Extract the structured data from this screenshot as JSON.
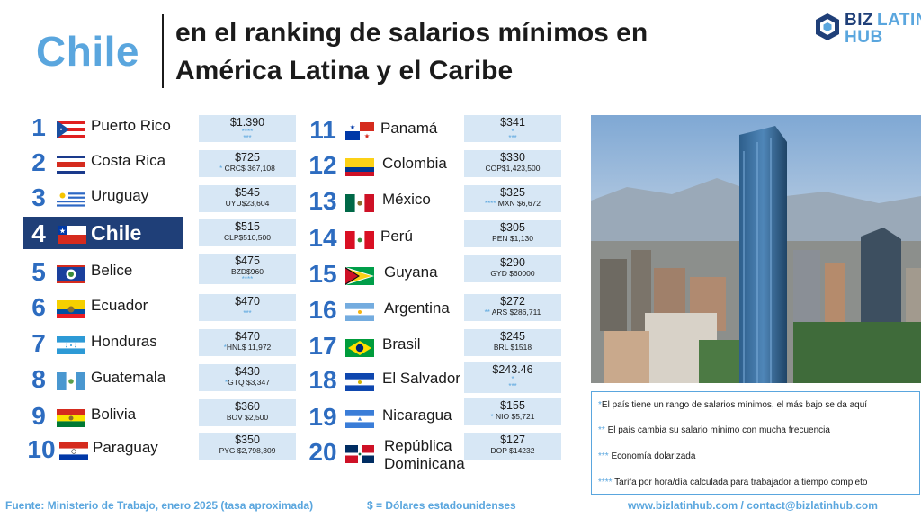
{
  "header": {
    "country": "Chile",
    "title_line1": "en el ranking de salarios mínimos en",
    "title_line2": "América Latina y el Caribe"
  },
  "logo": {
    "biz": "BIZ",
    "latin": "LATIN",
    "hub": "HUB"
  },
  "ranking": [
    {
      "rank": "1",
      "country": "Puerto Rico",
      "usd": "$1.390",
      "local": "",
      "stars_line1": "****",
      "stars_line2": "***"
    },
    {
      "rank": "2",
      "country": "Costa Rica",
      "usd": "$725",
      "star_prefix": "*",
      "local": "CRC$ 367,108"
    },
    {
      "rank": "3",
      "country": "Uruguay",
      "usd": "$545",
      "local": "UYU$23,604"
    },
    {
      "rank": "4",
      "country": "Chile",
      "usd": "$515",
      "local": "CLP$510,500"
    },
    {
      "rank": "5",
      "country": "Belice",
      "usd": "$475",
      "local": "BZD$960",
      "stars_line2": "****"
    },
    {
      "rank": "6",
      "country": "Ecuador",
      "usd": "$470",
      "local": "",
      "stars_line2": "***"
    },
    {
      "rank": "7",
      "country": "Honduras",
      "usd": "$470",
      "star_prefix": "*",
      "local": "HNL$ 11,972"
    },
    {
      "rank": "8",
      "country": "Guatemala",
      "usd": "$430",
      "star_prefix": "*",
      "local": "GTQ $3,347"
    },
    {
      "rank": "9",
      "country": "Bolivia",
      "usd": "$360",
      "local": "BOV $2,500"
    },
    {
      "rank": "10",
      "country": "Paraguay",
      "usd": "$350",
      "local": "PYG $2,798,309"
    },
    {
      "rank": "11",
      "country": "Panamá",
      "usd": "$341",
      "local": "",
      "stars_line1": "*",
      "stars_line2": "***"
    },
    {
      "rank": "12",
      "country": "Colombia",
      "usd": "$330",
      "local": "COP$1,423,500"
    },
    {
      "rank": "13",
      "country": "México",
      "usd": "$325",
      "star_prefix": "****",
      "local": "MXN $6,672"
    },
    {
      "rank": "14",
      "country": "Perú",
      "usd": "$305",
      "local": "PEN $1,130"
    },
    {
      "rank": "15",
      "country": "Guyana",
      "usd": "$290",
      "local": "GYD $60000"
    },
    {
      "rank": "16",
      "country": "Argentina",
      "usd": "$272",
      "star_prefix": "**",
      "local": "ARS $286,711"
    },
    {
      "rank": "17",
      "country": "Brasil",
      "usd": "$245",
      "local": "BRL $1518"
    },
    {
      "rank": "18",
      "country": "El Salvador",
      "usd": "$243.46",
      "local": "",
      "stars_line1": "*",
      "stars_line2": "***"
    },
    {
      "rank": "19",
      "country": "Nicaragua",
      "usd": "$155",
      "star_prefix": "*",
      "local": "NIO $5,721"
    },
    {
      "rank": "20",
      "country": "República Dominicana",
      "country_line1": "República",
      "country_line2": "Dominicana",
      "usd": "$127",
      "local": "DOP $14232"
    }
  ],
  "notes": [
    {
      "marker": "*",
      "text": "El país tiene un rango de salarios mínimos, el más bajo se da aquí"
    },
    {
      "marker": "**",
      "text": " El país cambia su salario mínimo con mucha frecuencia"
    },
    {
      "marker": "***",
      "text": " Economía dolarizada"
    },
    {
      "marker": "****",
      "text": " Tarifa por hora/día calculada para trabajador a tiempo completo"
    }
  ],
  "footer": {
    "source": "Fuente: Ministerio de Trabajo, enero 2025 (tasa aproximada)",
    "usd_note": "$ = Dólares estadounidenses",
    "contact": "www.bizlatinhub.com / contact@bizlatinhub.com"
  },
  "colors": {
    "accent_light": "#5aa6de",
    "accent_dark": "#2d6cc0",
    "highlight_bg": "#1f3f78",
    "salary_box": "#d7e7f5"
  }
}
